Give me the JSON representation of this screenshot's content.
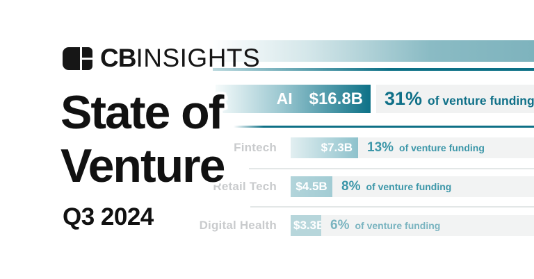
{
  "brand": {
    "cb": "CB",
    "insights": "INSIGHTS"
  },
  "title": {
    "line1": "State of",
    "line2": "Venture",
    "quarter": "Q3 2024"
  },
  "chart_data": {
    "type": "bar",
    "orientation": "horizontal",
    "title": "State of Venture Q3 2024 — sector funding",
    "unit": "USD billions",
    "categories": [
      "AI",
      "Fintech",
      "Retail Tech",
      "Digital Health"
    ],
    "values": [
      16.8,
      7.3,
      4.5,
      3.3
    ],
    "value_labels": [
      "$16.8B",
      "$7.3B",
      "$4.5B",
      "$3.3B"
    ],
    "pct_of_venture_funding": [
      31,
      13,
      8,
      6
    ],
    "pct_labels": [
      "31%",
      "13%",
      "8%",
      "6%"
    ],
    "pct_suffix": "of venture funding",
    "grid": false,
    "legend": false
  },
  "rows": [
    {
      "label": "AI",
      "value": "$16.8B",
      "pct": "31%",
      "suffix": "of venture funding"
    },
    {
      "label": "Fintech",
      "value": "$7.3B",
      "pct": "13%",
      "suffix": "of venture funding"
    },
    {
      "label": "Retail Tech",
      "value": "$4.5B",
      "pct": "8%",
      "suffix": "of venture funding"
    },
    {
      "label": "Digital Health",
      "value": "$3.3B",
      "pct": "6%",
      "suffix": "of venture funding"
    }
  ],
  "colors": {
    "dark_teal": "#0d7187",
    "mid_teal": "#3d97a9",
    "light_teal": "#b7d6db",
    "band_teal": "#7eb3bd",
    "row_background": "#f2f3f3",
    "label_gray": "#c9cbcd",
    "text_black": "#111111"
  }
}
